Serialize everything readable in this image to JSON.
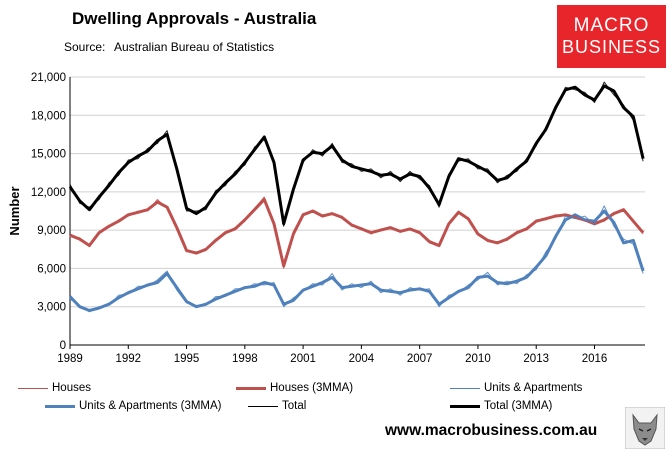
{
  "title": "Dwelling Approvals - Australia",
  "source_label": "Source:",
  "source_value": "Australian Bureau of Statistics",
  "logo": {
    "line1": "MACRO",
    "line2": "BUSINESS"
  },
  "website": "www.macrobusiness.com.au",
  "colors": {
    "houses": "#c0504d",
    "units": "#4f81bd",
    "total": "#000000",
    "logo_bg": "#e8252b"
  },
  "legend": [
    {
      "label": "Houses",
      "series": "houses",
      "width": 1
    },
    {
      "label": "Houses (3MMA)",
      "series": "houses",
      "width": 3
    },
    {
      "label": "Units & Apartments",
      "series": "units",
      "width": 1
    },
    {
      "label": "Units & Apartments (3MMA)",
      "series": "units",
      "width": 3
    },
    {
      "label": "Total",
      "series": "total",
      "width": 1
    },
    {
      "label": "Total (3MMA)",
      "series": "total",
      "width": 3
    }
  ],
  "chart_data": {
    "type": "line",
    "title": "Dwelling Approvals - Australia",
    "xlabel": "",
    "ylabel": "Number",
    "ylim": [
      0,
      21000
    ],
    "xlim": [
      1989,
      2018.6
    ],
    "yticks": [
      "0",
      "3,000",
      "6,000",
      "9,000",
      "12,000",
      "15,000",
      "18,000",
      "21,000"
    ],
    "ytick_values": [
      0,
      3000,
      6000,
      9000,
      12000,
      15000,
      18000,
      21000
    ],
    "xticks": [
      "1989",
      "1992",
      "1995",
      "1998",
      "2001",
      "2004",
      "2007",
      "2010",
      "2013",
      "2016"
    ],
    "xtick_values": [
      1989,
      1992,
      1995,
      1998,
      2001,
      2004,
      2007,
      2010,
      2013,
      2016
    ],
    "grid": true,
    "x": [
      1989.0,
      1989.5,
      1990.0,
      1990.5,
      1991.0,
      1991.5,
      1992.0,
      1992.5,
      1993.0,
      1993.5,
      1994.0,
      1994.5,
      1995.0,
      1995.5,
      1996.0,
      1996.5,
      1997.0,
      1997.5,
      1998.0,
      1998.5,
      1999.0,
      1999.5,
      2000.0,
      2000.5,
      2001.0,
      2001.5,
      2002.0,
      2002.5,
      2003.0,
      2003.5,
      2004.0,
      2004.5,
      2005.0,
      2005.5,
      2006.0,
      2006.5,
      2007.0,
      2007.5,
      2008.0,
      2008.5,
      2009.0,
      2009.5,
      2010.0,
      2010.5,
      2011.0,
      2011.5,
      2012.0,
      2012.5,
      2013.0,
      2013.5,
      2014.0,
      2014.5,
      2015.0,
      2015.5,
      2016.0,
      2016.5,
      2017.0,
      2017.5,
      2018.0,
      2018.5
    ],
    "series": [
      {
        "name": "Houses (3MMA)",
        "key": "houses",
        "values": [
          8600,
          8300,
          7800,
          8800,
          9300,
          9700,
          10200,
          10400,
          10600,
          11200,
          10800,
          9200,
          7400,
          7200,
          7500,
          8200,
          8800,
          9100,
          9800,
          10600,
          11400,
          9500,
          6200,
          8700,
          10200,
          10500,
          10100,
          10300,
          10000,
          9400,
          9100,
          8800,
          9000,
          9200,
          8900,
          9100,
          8800,
          8100,
          7800,
          9500,
          10400,
          9900,
          8700,
          8200,
          8000,
          8300,
          8800,
          9100,
          9700,
          9900,
          10100,
          10200,
          10000,
          9800,
          9500,
          9800,
          10300,
          10600,
          9700,
          8800
        ]
      },
      {
        "name": "Units & Apartments (3MMA)",
        "key": "units",
        "values": [
          3800,
          3000,
          2700,
          2900,
          3200,
          3700,
          4100,
          4400,
          4700,
          4900,
          5600,
          4500,
          3400,
          3000,
          3200,
          3600,
          3900,
          4200,
          4500,
          4600,
          4900,
          4700,
          3200,
          3500,
          4300,
          4600,
          4900,
          5300,
          4500,
          4600,
          4700,
          4800,
          4300,
          4200,
          4100,
          4300,
          4400,
          4200,
          3200,
          3700,
          4200,
          4500,
          5300,
          5400,
          4900,
          4800,
          5000,
          5300,
          6100,
          7000,
          8500,
          9800,
          10200,
          9800,
          9700,
          10500,
          9600,
          8000,
          8200,
          5800
        ]
      },
      {
        "name": "Total (3MMA)",
        "key": "total",
        "values": [
          12400,
          11300,
          10600,
          11600,
          12500,
          13500,
          14300,
          14800,
          15200,
          16000,
          16500,
          13800,
          10700,
          10300,
          10800,
          11900,
          12700,
          13400,
          14300,
          15300,
          16300,
          14300,
          9500,
          12200,
          14500,
          15100,
          15000,
          15600,
          14500,
          14000,
          13800,
          13600,
          13300,
          13400,
          13000,
          13400,
          13200,
          12300,
          11000,
          13200,
          14600,
          14400,
          14000,
          13600,
          12900,
          13100,
          13800,
          14400,
          15800,
          16900,
          18600,
          20000,
          20200,
          19600,
          19200,
          20300,
          19900,
          18600,
          17900,
          14600
        ]
      },
      {
        "name": "Houses",
        "key": "houses",
        "values": [
          8500,
          8400,
          7700,
          8900,
          9200,
          9800,
          10100,
          10500,
          10500,
          11400,
          10700,
          9100,
          7300,
          7300,
          7400,
          8300,
          8700,
          9200,
          9700,
          10700,
          11600,
          9300,
          6000,
          8900,
          10300,
          10400,
          10200,
          10200,
          10100,
          9300,
          9200,
          8700,
          9100,
          9100,
          9000,
          9000,
          8900,
          8000,
          7700,
          9600,
          10500,
          9800,
          8800,
          8100,
          8100,
          8200,
          8900,
          9000,
          9800,
          9800,
          10200,
          10100,
          10100,
          9700,
          9600,
          9700,
          10400,
          10500,
          9800,
          8700
        ]
      },
      {
        "name": "Units & Apartments",
        "key": "units",
        "values": [
          3600,
          3100,
          2600,
          3000,
          3100,
          3900,
          4000,
          4600,
          4600,
          5100,
          5800,
          4300,
          3300,
          3100,
          3100,
          3800,
          3800,
          4400,
          4400,
          4800,
          4700,
          4900,
          3000,
          3700,
          4200,
          4800,
          4700,
          5600,
          4300,
          4800,
          4500,
          5000,
          4100,
          4400,
          3900,
          4500,
          4300,
          4400,
          3000,
          3900,
          4100,
          4700,
          5100,
          5700,
          4700,
          5000,
          4800,
          5500,
          5900,
          7300,
          8300,
          10100,
          9900,
          10100,
          9400,
          10900,
          9300,
          8300,
          7900,
          5600
        ]
      },
      {
        "name": "Total",
        "key": "total",
        "values": [
          12600,
          11100,
          10800,
          11400,
          12700,
          13300,
          14500,
          14600,
          15400,
          15800,
          16800,
          13600,
          10500,
          10500,
          10600,
          12100,
          12500,
          13600,
          14100,
          15500,
          16100,
          14500,
          9300,
          12400,
          14300,
          15300,
          14800,
          15800,
          14300,
          14200,
          13600,
          13800,
          13100,
          13600,
          12800,
          13600,
          13000,
          12500,
          10800,
          13400,
          14400,
          14600,
          13800,
          13800,
          12700,
          13300,
          13600,
          14600,
          15600,
          17100,
          18400,
          20200,
          20000,
          19800,
          19000,
          20600,
          19600,
          18800,
          17600,
          14400
        ]
      }
    ]
  }
}
